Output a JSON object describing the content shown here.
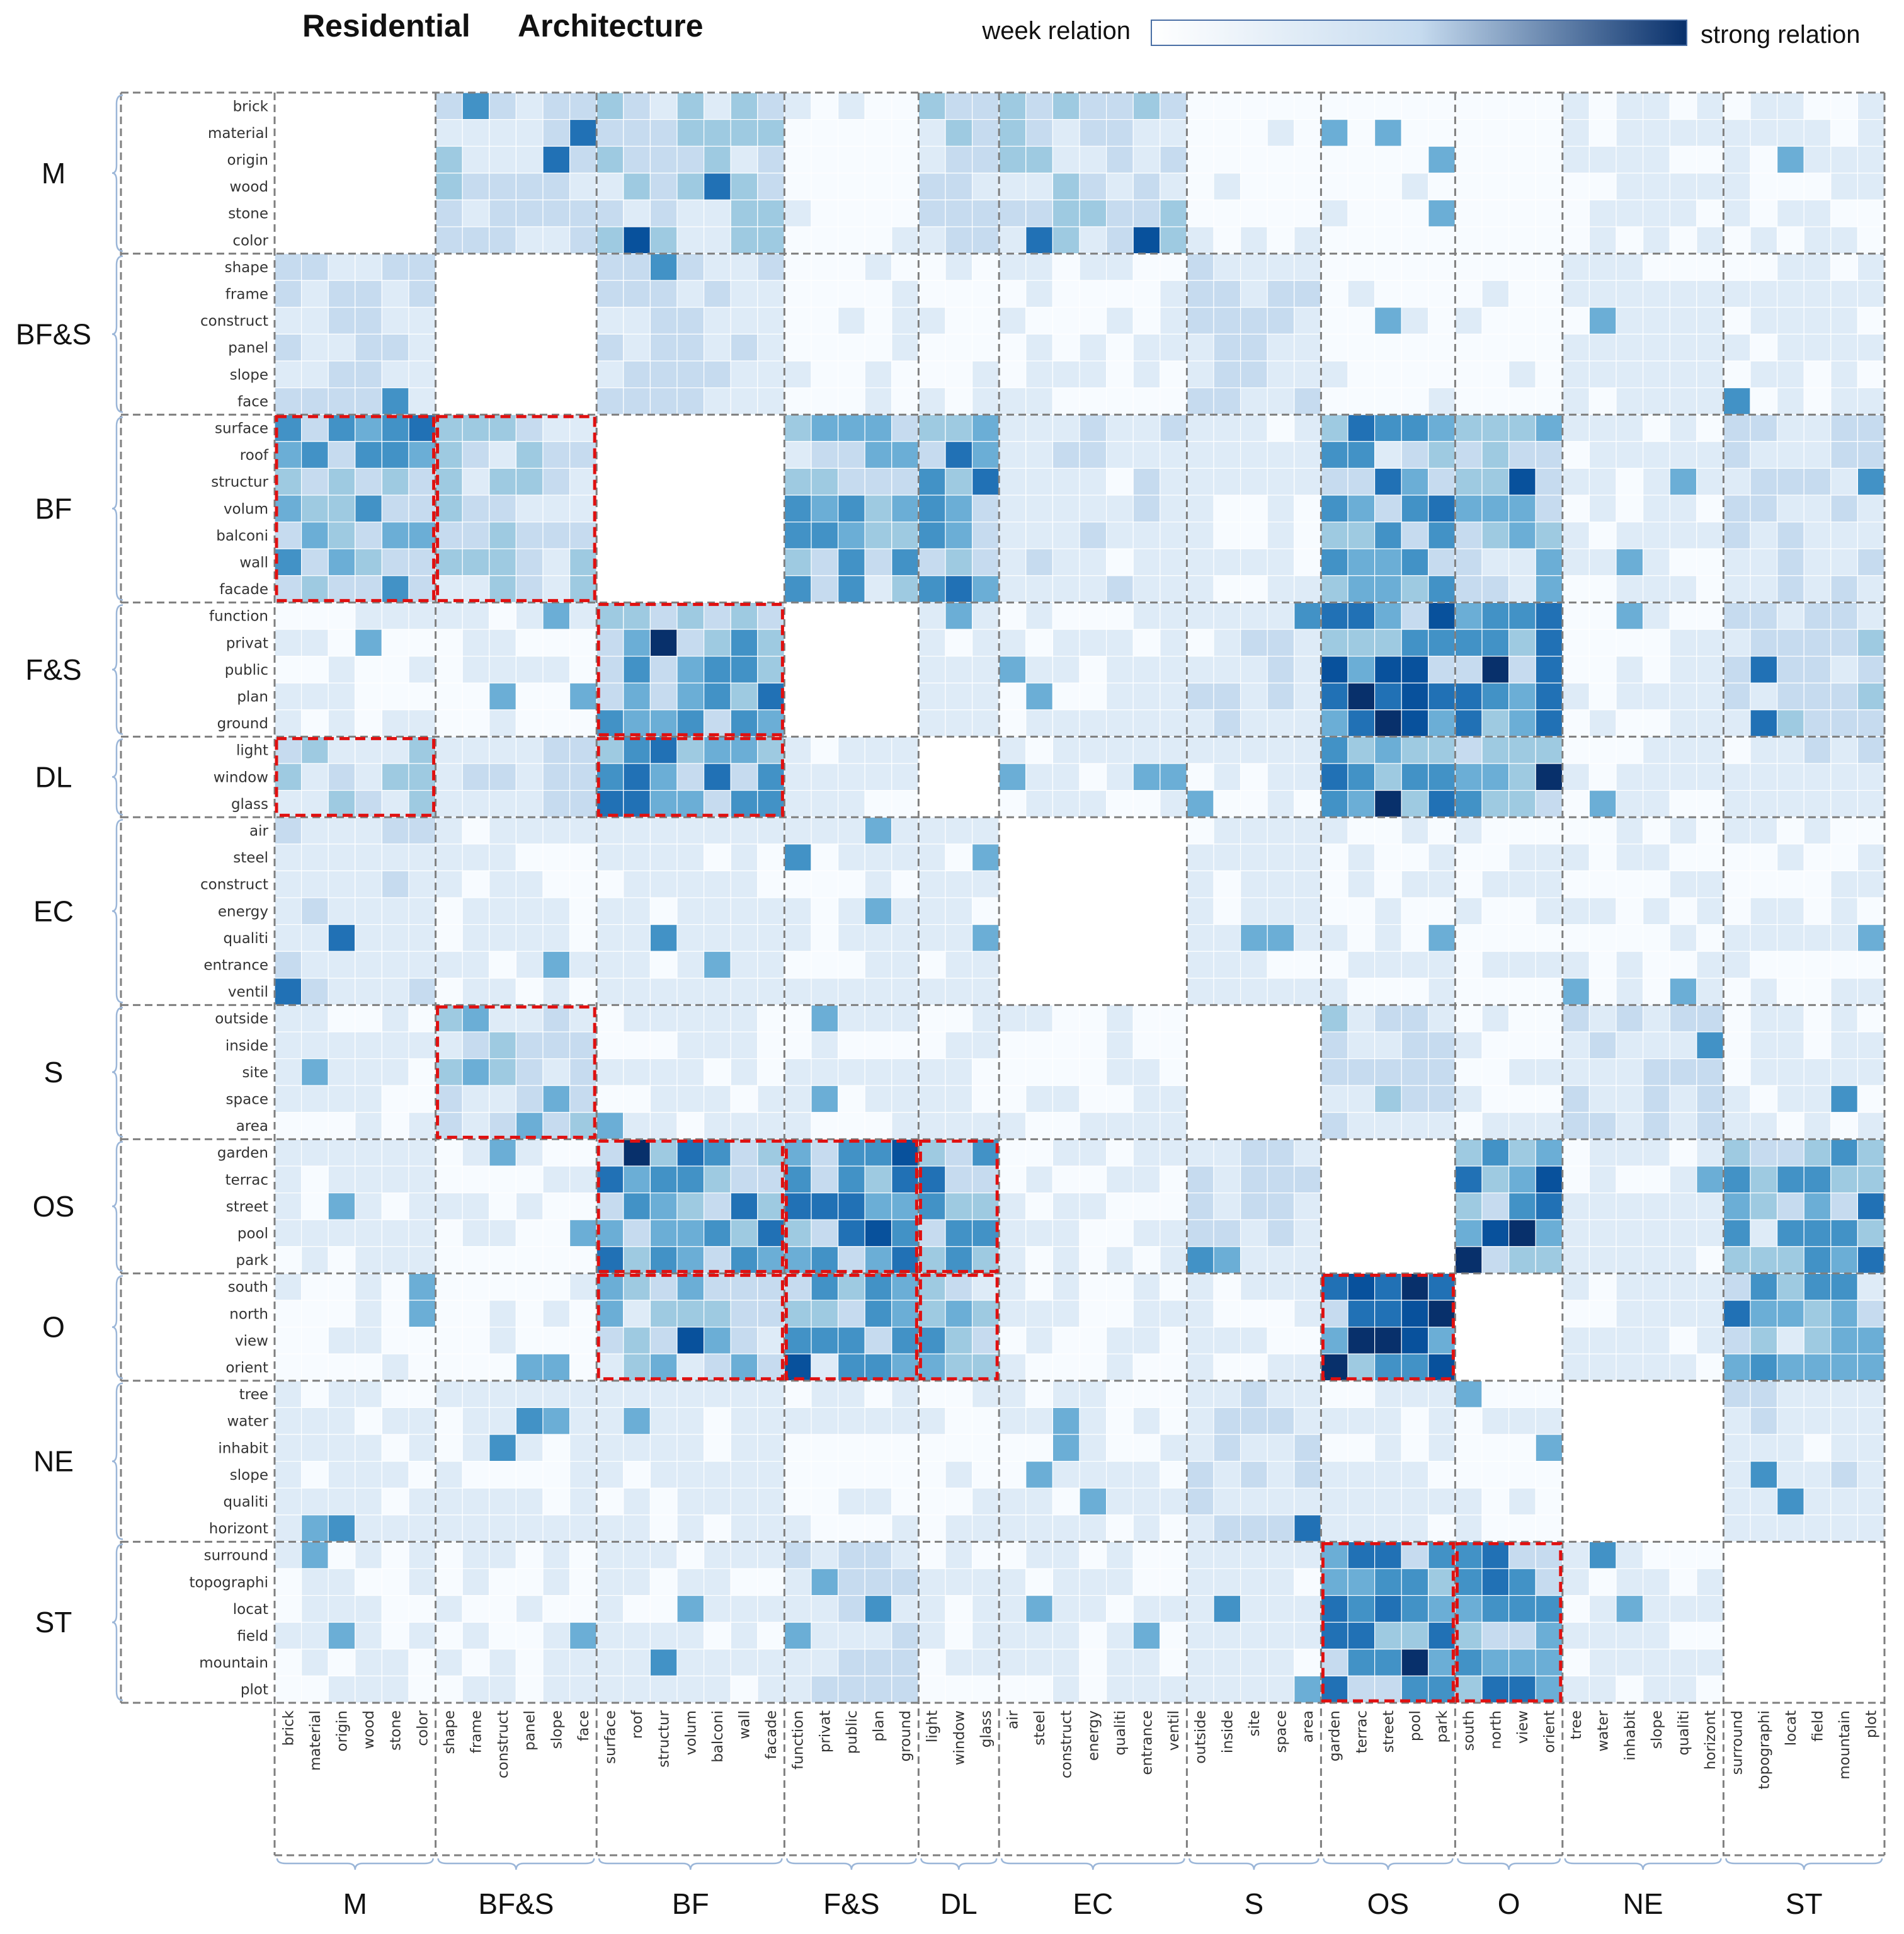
{
  "title_part1": "Residential",
  "title_part2": "Architecture",
  "legend": {
    "weak_label": "week relation",
    "strong_label": "strong relation",
    "color_weak": "#ffffff",
    "color_strong": "#08306b"
  },
  "colors": {
    "scale": [
      "#f7fbff",
      "#deebf7",
      "#c6dbef",
      "#9ecae1",
      "#6baed6",
      "#4292c6",
      "#2171b5",
      "#08519c",
      "#08306b"
    ],
    "highlight": "#e01010",
    "frame": "#7f7f7f"
  },
  "chart_data": {
    "type": "heatmap",
    "title": "Residential Architecture",
    "value_range": [
      0,
      1
    ],
    "groups": [
      {
        "name": "M",
        "terms": [
          "brick",
          "material",
          "origin",
          "wood",
          "stone",
          "color"
        ]
      },
      {
        "name": "BF&S",
        "terms": [
          "shape",
          "frame",
          "construct",
          "panel",
          "slope",
          "face"
        ]
      },
      {
        "name": "BF",
        "terms": [
          "surface",
          "roof",
          "structur",
          "volum",
          "balconi",
          "wall",
          "facade"
        ]
      },
      {
        "name": "F&S",
        "terms": [
          "function",
          "privat",
          "public",
          "plan",
          "ground"
        ]
      },
      {
        "name": "DL",
        "terms": [
          "light",
          "window",
          "glass"
        ]
      },
      {
        "name": "EC",
        "terms": [
          "air",
          "steel",
          "construct",
          "energy",
          "qualiti",
          "entrance",
          "ventil"
        ]
      },
      {
        "name": "S",
        "terms": [
          "outside",
          "inside",
          "site",
          "space",
          "area"
        ]
      },
      {
        "name": "OS",
        "terms": [
          "garden",
          "terrac",
          "street",
          "pool",
          "park"
        ]
      },
      {
        "name": "O",
        "terms": [
          "south",
          "north",
          "view",
          "orient"
        ]
      },
      {
        "name": "NE",
        "terms": [
          "tree",
          "water",
          "inhabit",
          "slope",
          "qualiti",
          "horizont"
        ]
      },
      {
        "name": "ST",
        "terms": [
          "surround",
          "topographi",
          "locat",
          "field",
          "mountain",
          "plot"
        ]
      }
    ],
    "block_strength": [
      [
        null,
        0.22,
        0.3,
        0.05,
        0.25,
        0.28,
        0.05,
        0.05,
        0.04,
        0.08,
        0.08
      ],
      [
        0.22,
        null,
        0.2,
        0.05,
        0.05,
        0.06,
        0.22,
        0.05,
        0.05,
        0.12,
        0.1
      ],
      [
        0.45,
        0.3,
        null,
        0.45,
        0.55,
        0.15,
        0.12,
        0.5,
        0.35,
        0.08,
        0.18
      ],
      [
        0.06,
        0.06,
        0.48,
        null,
        0.12,
        0.08,
        0.15,
        0.65,
        0.55,
        0.08,
        0.25
      ],
      [
        0.3,
        0.2,
        0.55,
        0.12,
        null,
        0.08,
        0.1,
        0.52,
        0.45,
        0.08,
        0.15
      ],
      [
        0.18,
        0.1,
        0.12,
        0.1,
        0.1,
        null,
        0.08,
        0.08,
        0.06,
        0.06,
        0.06
      ],
      [
        0.08,
        0.35,
        0.1,
        0.1,
        0.08,
        0.06,
        null,
        0.22,
        0.06,
        0.2,
        0.12
      ],
      [
        0.08,
        0.06,
        0.55,
        0.6,
        0.5,
        0.08,
        0.2,
        null,
        0.72,
        0.12,
        0.48
      ],
      [
        0.05,
        0.05,
        0.4,
        0.45,
        0.45,
        0.06,
        0.08,
        0.75,
        null,
        0.1,
        0.45
      ],
      [
        0.1,
        0.12,
        0.1,
        0.06,
        0.06,
        0.08,
        0.2,
        0.1,
        0.06,
        null,
        0.15
      ],
      [
        0.08,
        0.08,
        0.12,
        0.18,
        0.1,
        0.08,
        0.12,
        0.55,
        0.58,
        0.1,
        null
      ]
    ],
    "highlights": [
      {
        "row_group": "BF",
        "col_group": "M"
      },
      {
        "row_group": "BF",
        "col_group": "BF&S"
      },
      {
        "row_group": "F&S",
        "col_group": "BF"
      },
      {
        "row_group": "DL",
        "col_group": "M"
      },
      {
        "row_group": "DL",
        "col_group": "BF"
      },
      {
        "row_group": "S",
        "col_group": "BF&S"
      },
      {
        "row_group": "OS",
        "col_group": "BF"
      },
      {
        "row_group": "OS",
        "col_group": "F&S"
      },
      {
        "row_group": "OS",
        "col_group": "DL"
      },
      {
        "row_group": "O",
        "col_group": "BF"
      },
      {
        "row_group": "O",
        "col_group": "F&S"
      },
      {
        "row_group": "O",
        "col_group": "DL"
      },
      {
        "row_group": "O",
        "col_group": "OS"
      },
      {
        "row_group": "ST",
        "col_group": "OS"
      },
      {
        "row_group": "ST",
        "col_group": "O"
      }
    ]
  }
}
